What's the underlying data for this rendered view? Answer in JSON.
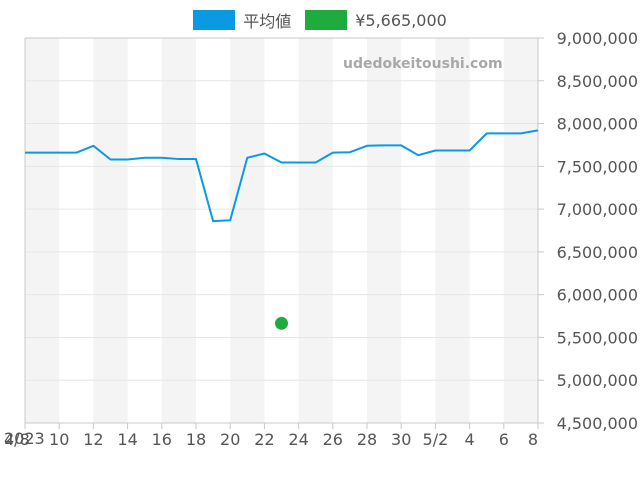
{
  "legend": [
    {
      "label": "平均値",
      "color": "#0a9ae2"
    },
    {
      "label": "¥5,665,000",
      "color": "#20ac3c"
    }
  ],
  "watermark": "udedokeitoushi.com",
  "year_label": "2023",
  "chart_data": {
    "type": "line",
    "x_start": "2023-04-08",
    "x_end": "2023-05-08",
    "xtick_labels": [
      "4/8",
      "10",
      "12",
      "14",
      "16",
      "18",
      "20",
      "22",
      "24",
      "26",
      "28",
      "30",
      "5/2",
      "4",
      "6",
      "8"
    ],
    "ylim": [
      4500000,
      9000000
    ],
    "ytick_labels": [
      "4,500,000",
      "5,000,000",
      "5,500,000",
      "6,000,000",
      "6,500,000",
      "7,000,000",
      "7,500,000",
      "8,000,000",
      "8,500,000",
      "9,000,000"
    ],
    "series": [
      {
        "name": "平均値",
        "color": "#0a9ae2",
        "points": [
          [
            "2023-04-08",
            7660000
          ],
          [
            "2023-04-09",
            7660000
          ],
          [
            "2023-04-10",
            7660000
          ],
          [
            "2023-04-11",
            7660000
          ],
          [
            "2023-04-12",
            7740000
          ],
          [
            "2023-04-13",
            7580000
          ],
          [
            "2023-04-14",
            7580000
          ],
          [
            "2023-04-15",
            7600000
          ],
          [
            "2023-04-16",
            7600000
          ],
          [
            "2023-04-17",
            7585000
          ],
          [
            "2023-04-18",
            7585000
          ],
          [
            "2023-04-19",
            6860000
          ],
          [
            "2023-04-20",
            6870000
          ],
          [
            "2023-04-21",
            7600000
          ],
          [
            "2023-04-22",
            7650000
          ],
          [
            "2023-04-23",
            7545000
          ],
          [
            "2023-04-24",
            7545000
          ],
          [
            "2023-04-25",
            7545000
          ],
          [
            "2023-04-26",
            7660000
          ],
          [
            "2023-04-27",
            7665000
          ],
          [
            "2023-04-28",
            7740000
          ],
          [
            "2023-04-29",
            7745000
          ],
          [
            "2023-04-30",
            7745000
          ],
          [
            "2023-05-01",
            7630000
          ],
          [
            "2023-05-02",
            7685000
          ],
          [
            "2023-05-03",
            7685000
          ],
          [
            "2023-05-04",
            7685000
          ],
          [
            "2023-05-05",
            7885000
          ],
          [
            "2023-05-06",
            7885000
          ],
          [
            "2023-05-07",
            7885000
          ],
          [
            "2023-05-08",
            7920000
          ]
        ]
      },
      {
        "name": "¥5,665,000",
        "color": "#20ac3c",
        "marker": "dot",
        "points": [
          [
            "2023-04-23",
            5665000
          ]
        ]
      }
    ],
    "grid": true,
    "alternating_bands": true,
    "legend_position": "top-center",
    "band_color": "#f4f4f4",
    "grid_color": "#e6e6e6",
    "axis_color": "#c8c8c8",
    "tick_text_color": "#555555"
  }
}
